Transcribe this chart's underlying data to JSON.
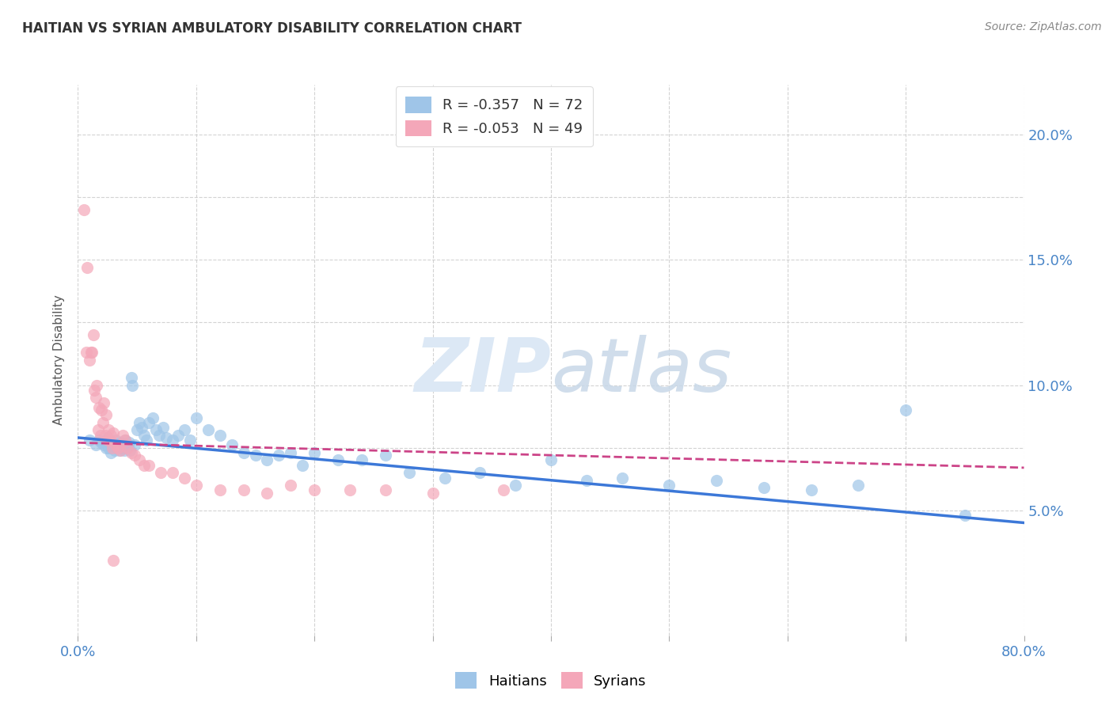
{
  "title": "HAITIAN VS SYRIAN AMBULATORY DISABILITY CORRELATION CHART",
  "source": "Source: ZipAtlas.com",
  "ylabel": "Ambulatory Disability",
  "xlim": [
    0.0,
    0.8
  ],
  "ylim": [
    0.0,
    0.22
  ],
  "ytick_right_labels": [
    "5.0%",
    "10.0%",
    "15.0%",
    "20.0%"
  ],
  "haitians_color": "#9fc5e8",
  "syrians_color": "#f4a7b9",
  "haitians_line_color": "#3c78d8",
  "syrians_line_color": "#cc4488",
  "watermark_zip": "ZIP",
  "watermark_atlas": "atlas",
  "watermark_color": "#dce8f5",
  "background_color": "#ffffff",
  "grid_color": "#c8c8c8",
  "legend_R_color": "#cc0000",
  "legend_N_color": "#3c78d8",
  "legend_label_color": "#333333",
  "haitians_x": [
    0.01,
    0.015,
    0.018,
    0.02,
    0.022,
    0.024,
    0.025,
    0.026,
    0.027,
    0.028,
    0.029,
    0.03,
    0.031,
    0.032,
    0.033,
    0.034,
    0.035,
    0.036,
    0.037,
    0.038,
    0.039,
    0.04,
    0.041,
    0.042,
    0.043,
    0.044,
    0.045,
    0.046,
    0.048,
    0.05,
    0.052,
    0.054,
    0.056,
    0.058,
    0.06,
    0.063,
    0.066,
    0.069,
    0.072,
    0.075,
    0.08,
    0.085,
    0.09,
    0.095,
    0.1,
    0.11,
    0.12,
    0.13,
    0.14,
    0.15,
    0.16,
    0.17,
    0.18,
    0.19,
    0.2,
    0.22,
    0.24,
    0.26,
    0.28,
    0.31,
    0.34,
    0.37,
    0.4,
    0.43,
    0.46,
    0.5,
    0.54,
    0.58,
    0.62,
    0.66,
    0.7,
    0.75
  ],
  "haitians_y": [
    0.078,
    0.076,
    0.078,
    0.077,
    0.076,
    0.075,
    0.079,
    0.075,
    0.077,
    0.073,
    0.075,
    0.076,
    0.074,
    0.078,
    0.075,
    0.076,
    0.074,
    0.077,
    0.076,
    0.075,
    0.074,
    0.078,
    0.075,
    0.076,
    0.077,
    0.074,
    0.103,
    0.1,
    0.076,
    0.082,
    0.085,
    0.083,
    0.08,
    0.078,
    0.085,
    0.087,
    0.082,
    0.08,
    0.083,
    0.079,
    0.078,
    0.08,
    0.082,
    0.078,
    0.087,
    0.082,
    0.08,
    0.076,
    0.073,
    0.072,
    0.07,
    0.072,
    0.073,
    0.068,
    0.073,
    0.07,
    0.07,
    0.072,
    0.065,
    0.063,
    0.065,
    0.06,
    0.07,
    0.062,
    0.063,
    0.06,
    0.062,
    0.059,
    0.058,
    0.06,
    0.09,
    0.048
  ],
  "syrians_x": [
    0.005,
    0.007,
    0.008,
    0.01,
    0.011,
    0.012,
    0.013,
    0.014,
    0.015,
    0.016,
    0.017,
    0.018,
    0.019,
    0.02,
    0.021,
    0.022,
    0.023,
    0.024,
    0.025,
    0.026,
    0.027,
    0.028,
    0.029,
    0.03,
    0.032,
    0.034,
    0.036,
    0.038,
    0.04,
    0.042,
    0.045,
    0.048,
    0.052,
    0.056,
    0.06,
    0.07,
    0.08,
    0.09,
    0.1,
    0.12,
    0.14,
    0.16,
    0.18,
    0.2,
    0.23,
    0.26,
    0.3,
    0.36,
    0.03
  ],
  "syrians_y": [
    0.17,
    0.113,
    0.147,
    0.11,
    0.113,
    0.113,
    0.12,
    0.098,
    0.095,
    0.1,
    0.082,
    0.091,
    0.08,
    0.09,
    0.085,
    0.093,
    0.08,
    0.088,
    0.078,
    0.082,
    0.078,
    0.08,
    0.075,
    0.081,
    0.076,
    0.075,
    0.074,
    0.08,
    0.078,
    0.075,
    0.073,
    0.072,
    0.07,
    0.068,
    0.068,
    0.065,
    0.065,
    0.063,
    0.06,
    0.058,
    0.058,
    0.057,
    0.06,
    0.058,
    0.058,
    0.058,
    0.057,
    0.058,
    0.03
  ],
  "haitian_line_x0": 0.0,
  "haitian_line_y0": 0.079,
  "haitian_line_x1": 0.8,
  "haitian_line_y1": 0.045,
  "syrian_line_x0": 0.0,
  "syrian_line_y0": 0.077,
  "syrian_line_x1": 0.8,
  "syrian_line_y1": 0.067
}
